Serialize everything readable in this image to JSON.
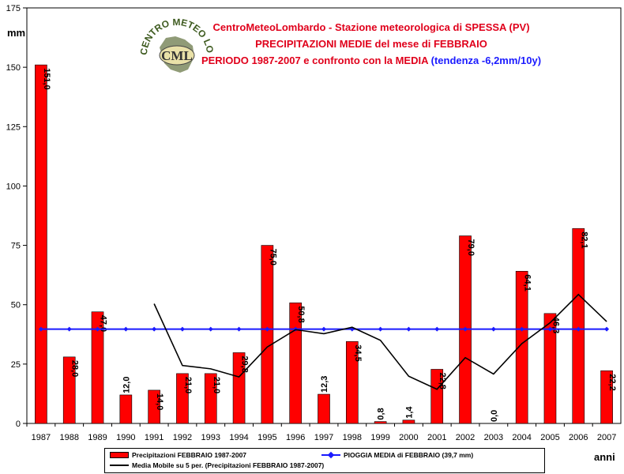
{
  "chart_data": {
    "type": "bar",
    "title_lines": [
      "CentroMeteoLombardo - Stazione meteorologica di SPESSA (PV)",
      "PRECIPITAZIONI MEDIE del mese di FEBBRAIO",
      "PERIODO 1987-2007 e confronto con la MEDIA"
    ],
    "trend_note": "(tendenza -6,2mm/10y)",
    "ylabel": "mm",
    "xlabel": "anni",
    "ylim": [
      0,
      175
    ],
    "yticks": [
      0,
      25,
      50,
      75,
      100,
      125,
      150,
      175
    ],
    "categories": [
      "1987",
      "1988",
      "1989",
      "1990",
      "1991",
      "1992",
      "1993",
      "1994",
      "1995",
      "1996",
      "1997",
      "1998",
      "1999",
      "2000",
      "2001",
      "2002",
      "2003",
      "2004",
      "2005",
      "2006",
      "2007"
    ],
    "series": [
      {
        "name": "Precipitazioni FEBBRAIO 1987-2007",
        "type": "bar",
        "color": "#ff0000",
        "values": [
          151.0,
          28.0,
          47.0,
          12.0,
          14.0,
          21.0,
          21.0,
          29.8,
          75.0,
          50.8,
          12.3,
          34.5,
          0.8,
          1.4,
          22.8,
          79.0,
          0.0,
          64.1,
          46.3,
          82.1,
          22.2
        ],
        "labels": [
          "151,0",
          "28,0",
          "47,0",
          "12,0",
          "14,0",
          "21,0",
          "21,0",
          "29,8",
          "75,0",
          "50,8",
          "12,3",
          "34,5",
          "0,8",
          "1,4",
          "22,8",
          "79,0",
          "0,0",
          "64,1",
          "46,3",
          "82,1",
          "22,2"
        ]
      },
      {
        "name": "PIOGGIA MEDIA di FEBBRAIO (39,7 mm)",
        "type": "line",
        "color": "#1a1aff",
        "constant": 39.7
      },
      {
        "name": "Media Mobile su 5 per. (Precipitazioni FEBBRAIO 1987-2007)",
        "type": "line",
        "color": "#000000",
        "values": [
          null,
          null,
          null,
          null,
          50.4,
          24.4,
          23.0,
          19.6,
          32.2,
          39.5,
          37.8,
          40.5,
          35.0,
          19.9,
          14.4,
          27.7,
          20.8,
          33.6,
          42.4,
          54.3,
          42.9
        ]
      }
    ],
    "grid": false,
    "legend_position": "bottom"
  },
  "logo": {
    "ring_text": "CENTRO METEO LOMBARDO",
    "abbr": "CML"
  },
  "colors": {
    "plot_bg": "#ffffff",
    "page_bg": "#ffffff",
    "title": "#e0001b",
    "trend": "#1a1aff"
  }
}
